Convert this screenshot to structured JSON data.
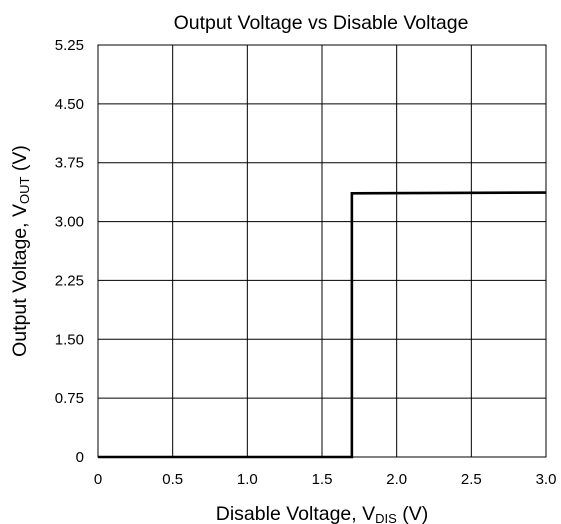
{
  "chart_data": {
    "type": "line",
    "title": "Output Voltage vs Disable Voltage",
    "xlabel": {
      "main": "Disable Voltage, V",
      "sub": "DIS",
      "unit": " (V)"
    },
    "ylabel": {
      "main": "Output Voltage, V",
      "sub": "OUT",
      "unit": " (V)"
    },
    "xlim": [
      0,
      3.0
    ],
    "ylim": [
      0,
      5.25
    ],
    "x_ticks": [
      0,
      0.5,
      1.0,
      1.5,
      2.0,
      2.5,
      3.0
    ],
    "x_tick_labels": [
      "0",
      "0.5",
      "1.0",
      "1.5",
      "2.0",
      "2.5",
      "3.0"
    ],
    "y_ticks": [
      0,
      0.75,
      1.5,
      2.25,
      3.0,
      3.75,
      4.5,
      5.25
    ],
    "y_tick_labels": [
      "0",
      "0.75",
      "1.50",
      "2.25",
      "3.00",
      "3.75",
      "4.50",
      "5.25"
    ],
    "grid": true,
    "series": [
      {
        "color": "#000000",
        "x": [
          0,
          1.7,
          1.7,
          3.0
        ],
        "y": [
          0,
          0,
          3.36,
          3.37
        ]
      }
    ]
  }
}
